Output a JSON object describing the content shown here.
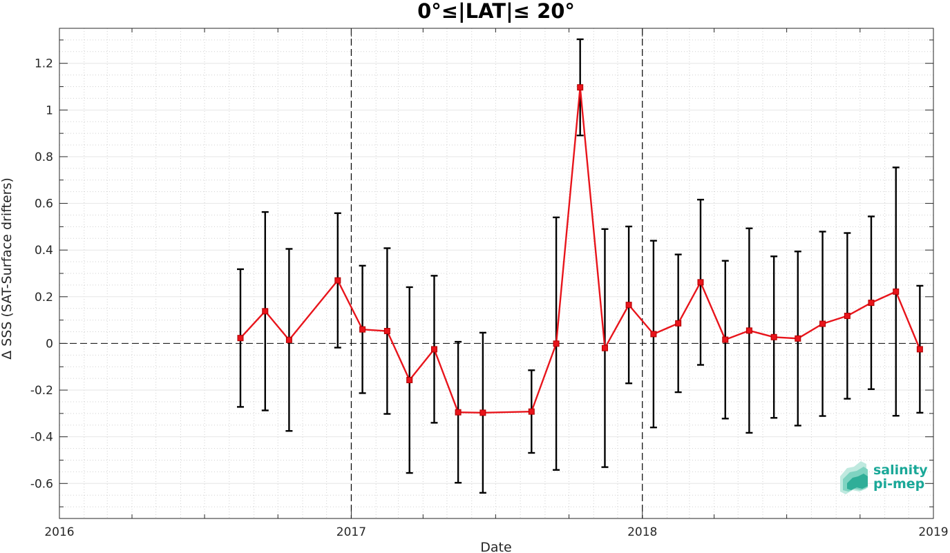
{
  "chart_data": {
    "type": "line",
    "title": "0°≤|LAT|≤ 20°",
    "xlabel": "Date",
    "ylabel": "Δ SSS (SAT-Surface drifters)",
    "xlim": [
      "2016-01-01",
      "2019-01-01"
    ],
    "ylim": [
      -0.75,
      1.35
    ],
    "x_ticks": [
      "2016",
      "2017",
      "2018",
      "2019"
    ],
    "y_ticks": [
      -0.6,
      -0.4,
      -0.2,
      0,
      0.2,
      0.4,
      0.6,
      0.8,
      1,
      1.2
    ],
    "y_tick_labels": [
      "-0.6",
      "-0.4",
      "-0.2",
      "0",
      "0.2",
      "0.4",
      "0.6",
      "0.8",
      "1",
      "1.2"
    ],
    "grid": true,
    "zero_line": true,
    "year_separators": [
      "2017-01-01",
      "2018-01-01"
    ],
    "series": [
      {
        "color": "#e8141b",
        "error_color": "#000000",
        "points": [
          {
            "x": "2016-08-15",
            "y": 0.023,
            "lo": -0.272,
            "hi": 0.318
          },
          {
            "x": "2016-09-15",
            "y": 0.138,
            "lo": -0.287,
            "hi": 0.563
          },
          {
            "x": "2016-10-15",
            "y": 0.015,
            "lo": -0.375,
            "hi": 0.405
          },
          {
            "x": "2016-12-15",
            "y": 0.27,
            "lo": -0.018,
            "hi": 0.558
          },
          {
            "x": "2017-01-15",
            "y": 0.06,
            "lo": -0.213,
            "hi": 0.333
          },
          {
            "x": "2017-02-15",
            "y": 0.053,
            "lo": -0.302,
            "hi": 0.408
          },
          {
            "x": "2017-03-15",
            "y": -0.157,
            "lo": -0.555,
            "hi": 0.241
          },
          {
            "x": "2017-04-15",
            "y": -0.025,
            "lo": -0.34,
            "hi": 0.29
          },
          {
            "x": "2017-05-15",
            "y": -0.295,
            "lo": -0.597,
            "hi": 0.007
          },
          {
            "x": "2017-06-15",
            "y": -0.297,
            "lo": -0.64,
            "hi": 0.046
          },
          {
            "x": "2017-08-15",
            "y": -0.292,
            "lo": -0.469,
            "hi": -0.115
          },
          {
            "x": "2017-09-15",
            "y": -0.001,
            "lo": -0.542,
            "hi": 0.54
          },
          {
            "x": "2017-10-15",
            "y": 1.097,
            "lo": 0.891,
            "hi": 1.303
          },
          {
            "x": "2017-11-15",
            "y": -0.02,
            "lo": -0.53,
            "hi": 0.49
          },
          {
            "x": "2017-12-15",
            "y": 0.165,
            "lo": -0.171,
            "hi": 0.501
          },
          {
            "x": "2018-01-15",
            "y": 0.04,
            "lo": -0.36,
            "hi": 0.44
          },
          {
            "x": "2018-02-15",
            "y": 0.086,
            "lo": -0.209,
            "hi": 0.381
          },
          {
            "x": "2018-03-15",
            "y": 0.262,
            "lo": -0.092,
            "hi": 0.616
          },
          {
            "x": "2018-04-15",
            "y": 0.016,
            "lo": -0.322,
            "hi": 0.354
          },
          {
            "x": "2018-05-15",
            "y": 0.055,
            "lo": -0.383,
            "hi": 0.493
          },
          {
            "x": "2018-06-15",
            "y": 0.027,
            "lo": -0.319,
            "hi": 0.373
          },
          {
            "x": "2018-07-15",
            "y": 0.021,
            "lo": -0.352,
            "hi": 0.394
          },
          {
            "x": "2018-08-15",
            "y": 0.084,
            "lo": -0.311,
            "hi": 0.479
          },
          {
            "x": "2018-09-15",
            "y": 0.118,
            "lo": -0.237,
            "hi": 0.473
          },
          {
            "x": "2018-10-15",
            "y": 0.174,
            "lo": -0.196,
            "hi": 0.544
          },
          {
            "x": "2018-11-15",
            "y": 0.222,
            "lo": -0.31,
            "hi": 0.754
          },
          {
            "x": "2018-12-15",
            "y": -0.025,
            "lo": -0.297,
            "hi": 0.247
          }
        ]
      }
    ]
  },
  "logo": {
    "line1": "salinity",
    "line2": "pi-mep",
    "color": "#1aa898"
  }
}
